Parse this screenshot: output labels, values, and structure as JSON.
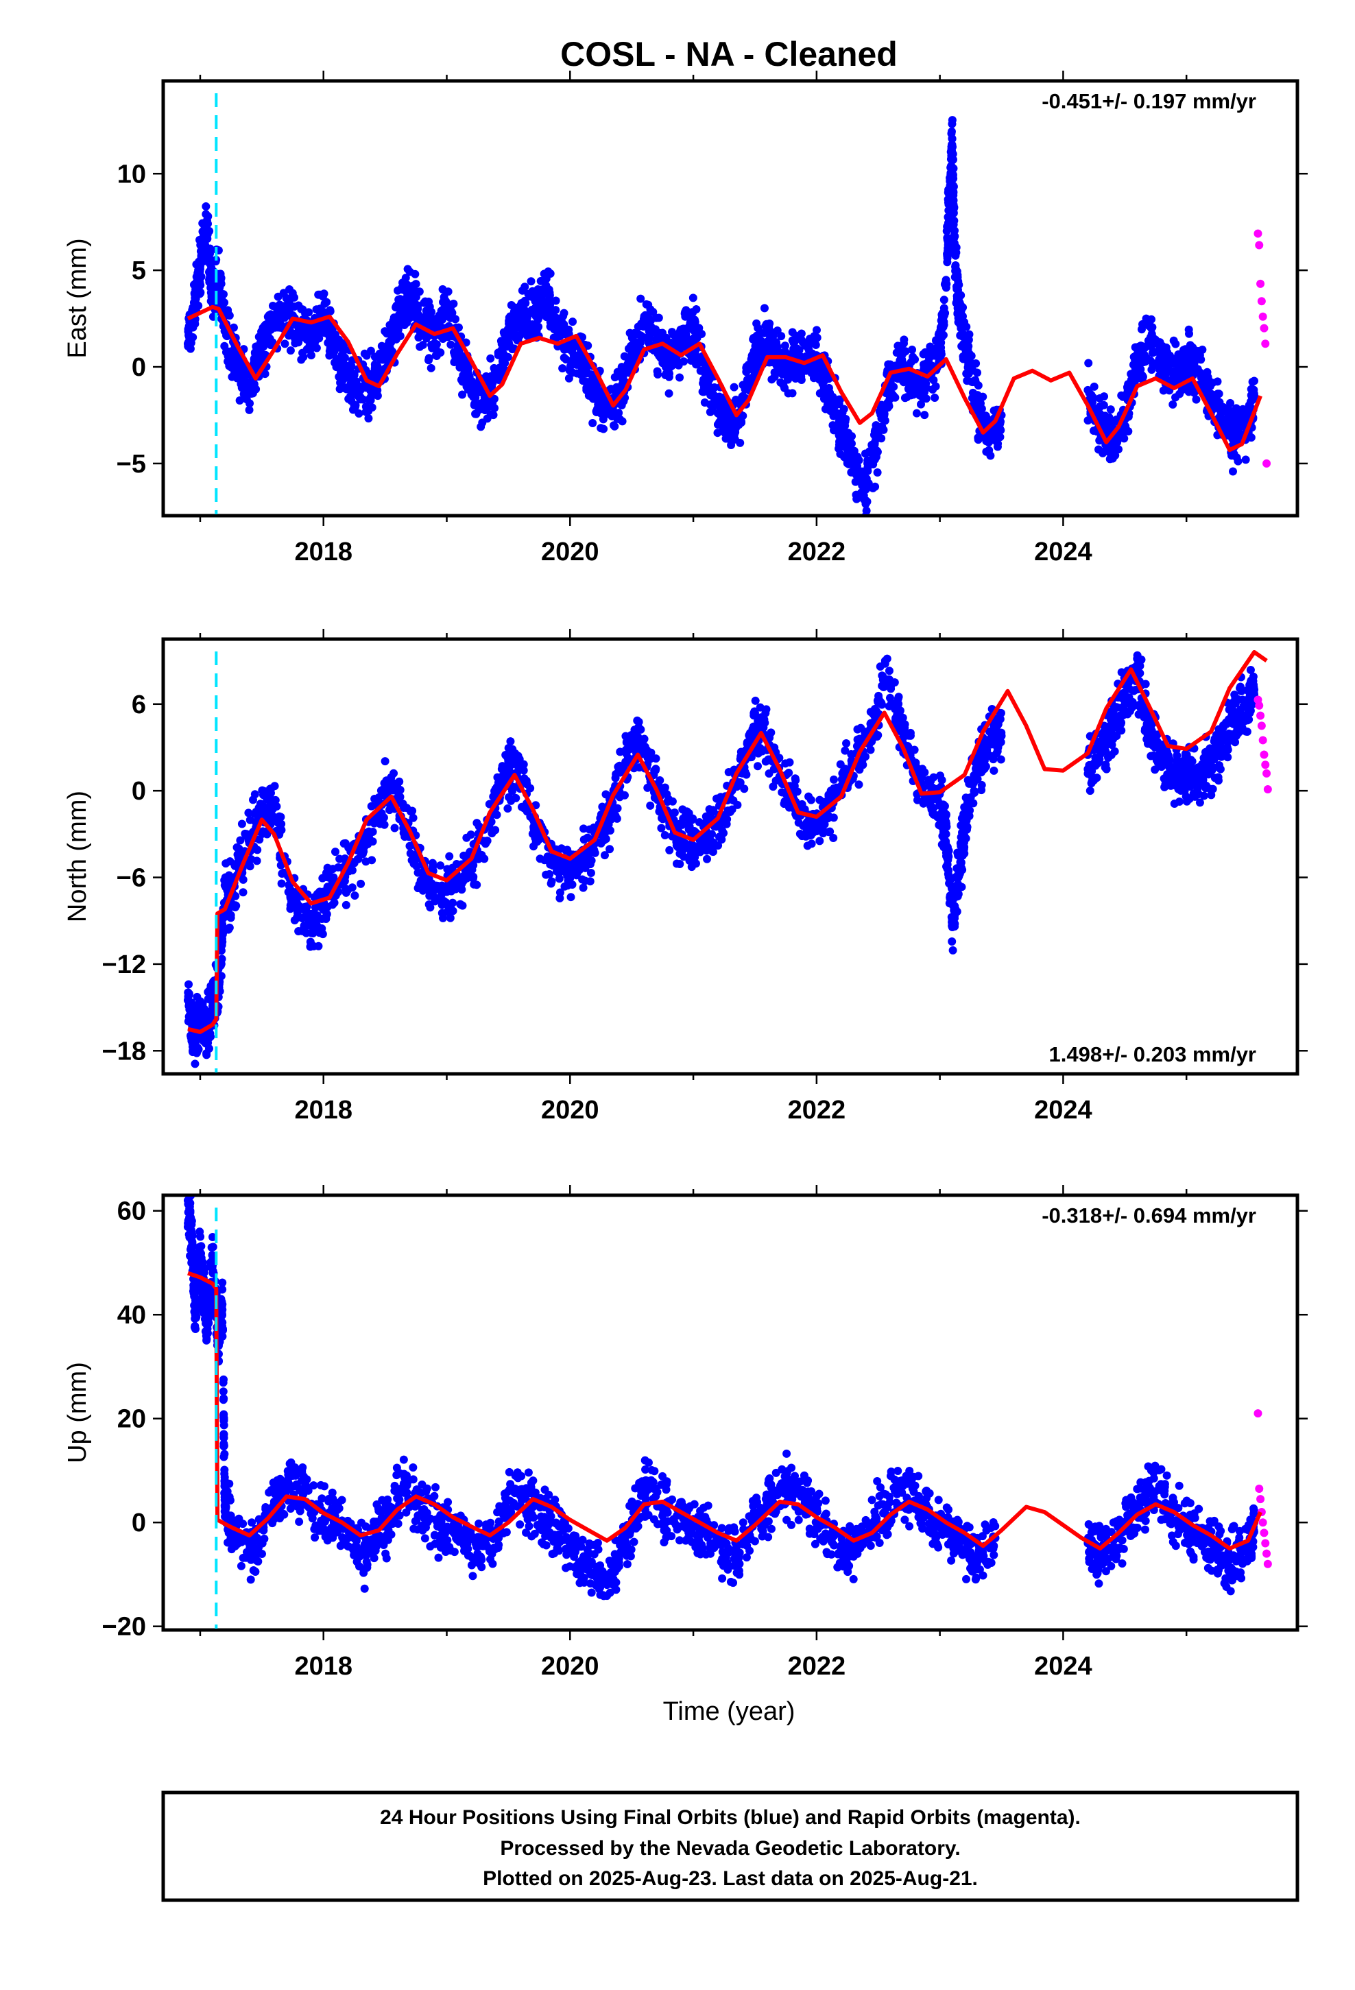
{
  "title": "COSL  - NA - Cleaned",
  "colors": {
    "final_orbits": "#0000ff",
    "rapid_orbits": "#ff00ff",
    "model": "#ff0000",
    "event_line": "#00e5ff",
    "frame": "#000000"
  },
  "x_axis_label": "Time (year)",
  "footer": {
    "line1": "24 Hour Positions Using Final Orbits (blue) and Rapid Orbits (magenta).",
    "line2": "Processed by the Nevada Geodetic Laboratory.",
    "line3": "Plotted on 2025-Aug-23. Last data on 2025-Aug-21."
  },
  "chart_data": [
    {
      "type": "scatter",
      "component": "East",
      "ylabel": "East (mm)",
      "xlim": [
        2016.7,
        2025.9
      ],
      "ylim": [
        -7.7,
        14.8
      ],
      "xticks": [
        2018,
        2020,
        2022,
        2024
      ],
      "yticks": [
        -5,
        0,
        5,
        10
      ],
      "ytick_labels": [
        "−5",
        "0",
        "5",
        "10"
      ],
      "velocity_label": "-0.451+/- 0.197 mm/yr",
      "velocity_position": "top-right",
      "event_line_x": 2017.13,
      "model": {
        "x": [
          2016.9,
          2017.1,
          2017.15,
          2017.3,
          2017.45,
          2017.6,
          2017.75,
          2017.9,
          2018.05,
          2018.2,
          2018.35,
          2018.45,
          2018.6,
          2018.75,
          2018.9,
          2019.05,
          2019.2,
          2019.35,
          2019.45,
          2019.6,
          2019.75,
          2019.9,
          2020.05,
          2020.2,
          2020.35,
          2020.45,
          2020.6,
          2020.75,
          2020.9,
          2021.05,
          2021.2,
          2021.35,
          2021.45,
          2021.6,
          2021.75,
          2021.9,
          2022.05,
          2022.2,
          2022.35,
          2022.45,
          2022.6,
          2022.75,
          2022.9,
          2023.05,
          2023.2,
          2023.35,
          2023.45,
          2023.6,
          2023.75,
          2023.9,
          2024.05,
          2024.2,
          2024.35,
          2024.45,
          2024.6,
          2024.75,
          2024.9,
          2025.05,
          2025.2,
          2025.35,
          2025.45,
          2025.6
        ],
        "y": [
          2.5,
          3.1,
          3.0,
          1.1,
          -0.6,
          0.9,
          2.5,
          2.3,
          2.6,
          1.3,
          -0.7,
          -1.0,
          0.7,
          2.2,
          1.7,
          2.0,
          0.3,
          -1.5,
          -0.9,
          1.2,
          1.5,
          1.2,
          1.6,
          -0.1,
          -2.0,
          -1.2,
          0.9,
          1.2,
          0.6,
          1.2,
          -0.6,
          -2.5,
          -1.7,
          0.5,
          0.5,
          0.2,
          0.6,
          -1.3,
          -2.9,
          -2.4,
          -0.3,
          -0.1,
          -0.5,
          0.4,
          -1.6,
          -3.4,
          -2.8,
          -0.6,
          -0.2,
          -0.7,
          -0.3,
          -2.0,
          -3.9,
          -3.1,
          -1.0,
          -0.6,
          -1.1,
          -0.6,
          -2.4,
          -4.3,
          -4.0,
          -1.5
        ]
      },
      "final_orbits": {
        "x": [
          2016.9,
          2016.95,
          2017.0,
          2017.05,
          2017.1,
          2017.15,
          2017.2,
          2017.3,
          2017.4,
          2017.5,
          2017.6,
          2017.7,
          2017.8,
          2017.9,
          2018.0,
          2018.1,
          2018.2,
          2018.3,
          2018.4,
          2018.5,
          2018.6,
          2018.7,
          2018.8,
          2018.9,
          2019.0,
          2019.1,
          2019.2,
          2019.3,
          2019.4,
          2019.5,
          2019.6,
          2019.7,
          2019.8,
          2019.9,
          2020.0,
          2020.1,
          2020.2,
          2020.3,
          2020.4,
          2020.5,
          2020.6,
          2020.7,
          2020.8,
          2020.9,
          2021.0,
          2021.1,
          2021.2,
          2021.3,
          2021.4,
          2021.5,
          2021.6,
          2021.7,
          2021.8,
          2021.9,
          2022.0,
          2022.1,
          2022.2,
          2022.3,
          2022.4,
          2022.5,
          2022.6,
          2022.7,
          2022.8,
          2022.9,
          2023.0,
          2023.05,
          2023.08,
          2023.1,
          2023.12,
          2023.15,
          2023.2,
          2023.3,
          2023.4,
          2023.5,
          2024.2,
          2024.3,
          2024.4,
          2024.5,
          2024.6,
          2024.7,
          2024.8,
          2024.9,
          2025.0,
          2025.1,
          2025.2,
          2025.3,
          2025.4,
          2025.5,
          2025.55
        ],
        "y": [
          1.2,
          3.0,
          5.2,
          7.4,
          3.5,
          4.8,
          2.0,
          0.4,
          -0.8,
          1.0,
          2.2,
          2.9,
          2.0,
          1.8,
          2.7,
          1.0,
          -0.5,
          -1.2,
          -0.9,
          0.5,
          2.4,
          3.6,
          2.1,
          1.6,
          2.7,
          0.8,
          -1.0,
          -1.8,
          -0.6,
          1.7,
          2.6,
          2.9,
          3.8,
          1.9,
          1.2,
          0.4,
          -1.3,
          -2.4,
          -1.6,
          0.8,
          2.2,
          1.4,
          0.4,
          1.0,
          1.9,
          -0.5,
          -2.0,
          -3.0,
          -1.9,
          0.8,
          1.3,
          0.4,
          0.1,
          0.4,
          0.6,
          -1.6,
          -3.2,
          -5.0,
          -6.3,
          -3.5,
          -0.8,
          0.2,
          -1.0,
          -0.4,
          0.8,
          4.5,
          9.2,
          11.8,
          6.0,
          3.2,
          1.0,
          -1.8,
          -3.6,
          -2.5,
          -1.2,
          -2.8,
          -3.9,
          -2.5,
          0.5,
          1.4,
          0.4,
          -0.6,
          0.4,
          -0.3,
          -1.4,
          -2.8,
          -3.6,
          -3.0,
          -1.5
        ]
      },
      "rapid_orbits": {
        "x": [
          2025.58,
          2025.59,
          2025.6,
          2025.61,
          2025.62,
          2025.63,
          2025.64,
          2025.65
        ],
        "y": [
          6.9,
          6.3,
          4.3,
          3.4,
          2.6,
          2.0,
          1.2,
          -5.0
        ]
      }
    },
    {
      "type": "scatter",
      "component": "North",
      "ylabel": "North (mm)",
      "xlim": [
        2016.7,
        2025.9
      ],
      "ylim": [
        -19.6,
        10.5
      ],
      "xticks": [
        2018,
        2020,
        2022,
        2024
      ],
      "yticks": [
        -18,
        -12,
        -6,
        0,
        6
      ],
      "ytick_labels": [
        "−18",
        "−12",
        "−6",
        "0",
        "6"
      ],
      "velocity_label": "1.498+/- 0.203 mm/yr",
      "velocity_position": "bottom-right",
      "event_line_x": 2017.13,
      "model": {
        "x": [
          2016.9,
          2017.0,
          2017.1,
          2017.13,
          2017.14,
          2017.2,
          2017.35,
          2017.5,
          2017.6,
          2017.75,
          2017.9,
          2018.05,
          2018.2,
          2018.35,
          2018.55,
          2018.7,
          2018.85,
          2019.0,
          2019.2,
          2019.35,
          2019.55,
          2019.7,
          2019.85,
          2020.0,
          2020.2,
          2020.35,
          2020.55,
          2020.7,
          2020.85,
          2021.0,
          2021.2,
          2021.35,
          2021.55,
          2021.7,
          2021.85,
          2022.0,
          2022.2,
          2022.35,
          2022.55,
          2022.7,
          2022.85,
          2023.0,
          2023.2,
          2023.35,
          2023.55,
          2023.7,
          2023.85,
          2024.0,
          2024.2,
          2024.35,
          2024.55,
          2024.7,
          2024.85,
          2025.0,
          2025.2,
          2025.35,
          2025.55,
          2025.65
        ],
        "y": [
          -16.5,
          -16.7,
          -16.2,
          -15.8,
          -8.5,
          -8.2,
          -5.0,
          -2.0,
          -3.0,
          -6.3,
          -7.8,
          -7.4,
          -5.0,
          -2.0,
          -0.4,
          -2.8,
          -5.7,
          -6.2,
          -4.7,
          -1.5,
          1.1,
          -1.3,
          -4.2,
          -4.7,
          -3.4,
          -0.3,
          2.5,
          0.1,
          -2.9,
          -3.4,
          -1.9,
          1.2,
          4.0,
          1.5,
          -1.5,
          -1.8,
          -0.4,
          2.7,
          5.4,
          3.0,
          -0.2,
          -0.1,
          1.1,
          4.1,
          6.9,
          4.5,
          1.5,
          1.4,
          2.6,
          5.7,
          8.4,
          5.8,
          3.1,
          2.9,
          4.1,
          7.1,
          9.6,
          9.0
        ]
      },
      "final_orbits": {
        "x": [
          2016.9,
          2016.95,
          2017.0,
          2017.05,
          2017.1,
          2017.15,
          2017.2,
          2017.25,
          2017.35,
          2017.5,
          2017.6,
          2017.75,
          2017.9,
          2018.0,
          2018.1,
          2018.25,
          2018.4,
          2018.55,
          2018.7,
          2018.85,
          2019.0,
          2019.15,
          2019.3,
          2019.45,
          2019.55,
          2019.7,
          2019.85,
          2020.0,
          2020.15,
          2020.3,
          2020.45,
          2020.55,
          2020.7,
          2020.85,
          2021.0,
          2021.15,
          2021.3,
          2021.45,
          2021.55,
          2021.7,
          2021.85,
          2022.0,
          2022.15,
          2022.3,
          2022.45,
          2022.55,
          2022.7,
          2022.85,
          2023.0,
          2023.05,
          2023.1,
          2023.15,
          2023.2,
          2023.3,
          2023.4,
          2023.5,
          2024.2,
          2024.3,
          2024.4,
          2024.5,
          2024.6,
          2024.7,
          2024.8,
          2024.9,
          2025.0,
          2025.1,
          2025.2,
          2025.3,
          2025.4,
          2025.5,
          2025.55
        ],
        "y": [
          -14.5,
          -17.5,
          -15.8,
          -16.8,
          -14.9,
          -13.0,
          -7.8,
          -7.0,
          -4.5,
          -1.5,
          -1.0,
          -7.8,
          -9.0,
          -8.0,
          -6.3,
          -5.0,
          -2.0,
          0.5,
          -3.0,
          -6.5,
          -7.0,
          -5.5,
          -3.5,
          1.0,
          2.0,
          -2.0,
          -5.0,
          -5.5,
          -4.5,
          -2.0,
          2.0,
          3.5,
          0.0,
          -3.0,
          -3.8,
          -3.0,
          -0.5,
          3.0,
          4.5,
          1.0,
          -1.5,
          -2.8,
          -0.3,
          2.0,
          4.0,
          7.5,
          4.0,
          0.5,
          -1.0,
          -3.0,
          -9.2,
          -6.0,
          -2.5,
          1.5,
          3.5,
          3.8,
          1.5,
          2.5,
          4.5,
          6.5,
          7.8,
          4.5,
          2.0,
          0.8,
          1.5,
          1.0,
          2.0,
          3.5,
          5.0,
          6.2,
          7.0
        ]
      },
      "rapid_orbits": {
        "x": [
          2025.58,
          2025.59,
          2025.6,
          2025.61,
          2025.62,
          2025.63,
          2025.64,
          2025.65,
          2025.66
        ],
        "y": [
          6.3,
          5.9,
          5.2,
          4.5,
          3.5,
          2.5,
          1.8,
          1.2,
          0.1
        ]
      }
    },
    {
      "type": "scatter",
      "component": "Up",
      "ylabel": "Up (mm)",
      "xlim": [
        2016.7,
        2025.9
      ],
      "ylim": [
        -20.7,
        63.0
      ],
      "xticks": [
        2018,
        2020,
        2022,
        2024
      ],
      "yticks": [
        -20,
        0,
        20,
        40,
        60
      ],
      "ytick_labels": [
        "−20",
        "0",
        "20",
        "40",
        "60"
      ],
      "velocity_label": "-0.318+/- 0.694 mm/yr",
      "velocity_position": "top-right",
      "event_line_x": 2017.13,
      "model": {
        "x": [
          2016.9,
          2017.0,
          2017.1,
          2017.13,
          2017.14,
          2017.25,
          2017.4,
          2017.55,
          2017.7,
          2017.85,
          2018.0,
          2018.15,
          2018.3,
          2018.45,
          2018.6,
          2018.75,
          2018.9,
          2019.05,
          2019.2,
          2019.35,
          2019.5,
          2019.7,
          2019.85,
          2020.0,
          2020.15,
          2020.3,
          2020.45,
          2020.6,
          2020.75,
          2020.9,
          2021.05,
          2021.2,
          2021.35,
          2021.5,
          2021.7,
          2021.85,
          2022.0,
          2022.15,
          2022.3,
          2022.45,
          2022.6,
          2022.75,
          2022.9,
          2023.05,
          2023.2,
          2023.35,
          2023.5,
          2023.7,
          2023.85,
          2024.0,
          2024.15,
          2024.3,
          2024.45,
          2024.6,
          2024.75,
          2024.9,
          2025.05,
          2025.2,
          2025.35,
          2025.5,
          2025.6
        ],
        "y": [
          48.0,
          47.2,
          46.0,
          45.0,
          0.5,
          -0.9,
          -2.5,
          0.8,
          5.0,
          4.5,
          1.8,
          0.0,
          -2.5,
          -1.5,
          2.5,
          5.0,
          3.5,
          1.0,
          -0.8,
          -2.5,
          0.0,
          4.5,
          3.0,
          0.5,
          -1.5,
          -3.5,
          -1.0,
          3.5,
          4.0,
          2.0,
          0.0,
          -2.0,
          -3.5,
          -0.5,
          4.0,
          3.5,
          1.0,
          -1.0,
          -3.5,
          -2.0,
          1.5,
          4.0,
          2.5,
          0.0,
          -2.0,
          -4.5,
          -1.5,
          3.0,
          2.0,
          -0.5,
          -3.0,
          -5.0,
          -2.0,
          1.5,
          3.5,
          2.0,
          -0.5,
          -2.5,
          -5.0,
          -3.5,
          2.0
        ]
      },
      "final_orbits": {
        "x": [
          2016.9,
          2016.93,
          2016.96,
          2017.0,
          2017.03,
          2017.06,
          2017.1,
          2017.15,
          2017.18,
          2017.2,
          2017.3,
          2017.45,
          2017.6,
          2017.75,
          2017.9,
          2018.05,
          2018.2,
          2018.35,
          2018.5,
          2018.65,
          2018.8,
          2018.95,
          2019.1,
          2019.25,
          2019.4,
          2019.55,
          2019.7,
          2019.85,
          2020.0,
          2020.15,
          2020.3,
          2020.45,
          2020.6,
          2020.75,
          2020.9,
          2021.05,
          2021.2,
          2021.35,
          2021.5,
          2021.65,
          2021.8,
          2021.95,
          2022.1,
          2022.25,
          2022.4,
          2022.55,
          2022.7,
          2022.85,
          2023.0,
          2023.15,
          2023.3,
          2023.45,
          2024.2,
          2024.3,
          2024.45,
          2024.6,
          2024.75,
          2024.9,
          2025.05,
          2025.2,
          2025.35,
          2025.5,
          2025.55
        ],
        "y": [
          62.0,
          55.0,
          40.0,
          52.0,
          44.0,
          38.0,
          50.0,
          34.0,
          42.0,
          3.0,
          -3.0,
          -5.0,
          4.0,
          9.0,
          3.0,
          1.0,
          -3.0,
          -6.0,
          0.0,
          7.0,
          2.0,
          -1.0,
          -2.0,
          -6.0,
          -2.0,
          6.0,
          3.0,
          0.0,
          -4.0,
          -8.0,
          -12.0,
          -4.0,
          6.0,
          3.0,
          2.0,
          -2.0,
          -4.0,
          -8.0,
          0.0,
          5.0,
          6.0,
          2.0,
          -3.0,
          -6.0,
          -2.0,
          2.0,
          7.0,
          3.0,
          -1.0,
          -3.0,
          -8.0,
          -3.0,
          -4.0,
          -7.0,
          -3.0,
          3.0,
          6.0,
          2.0,
          -2.0,
          -4.0,
          -7.0,
          -5.0,
          0.0
        ]
      },
      "rapid_orbits": {
        "x": [
          2025.58,
          2025.59,
          2025.6,
          2025.61,
          2025.62,
          2025.63,
          2025.64,
          2025.65,
          2025.66
        ],
        "y": [
          21.0,
          6.5,
          4.5,
          2.0,
          0.0,
          -2.0,
          -4.0,
          -6.0,
          -8.0
        ]
      }
    }
  ]
}
